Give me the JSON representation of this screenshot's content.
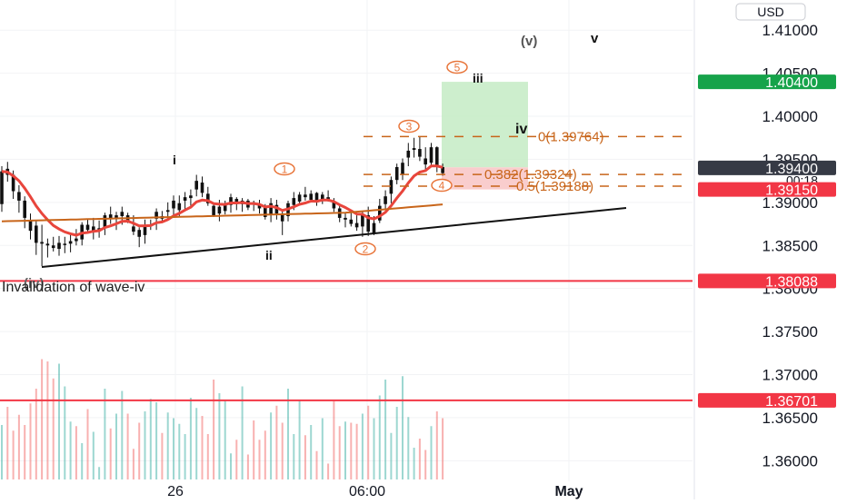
{
  "currency_button": "USD",
  "colors": {
    "candle": "#111111",
    "ema_fast": "#e8453c",
    "ema_slow": "#c8651a",
    "trendline": "#111111",
    "fib": "#c8651a",
    "wave_circle": "#e8753a",
    "level_red": "#f23645",
    "current_price_bg": "#363a45",
    "target_green": "#16a34a",
    "volume_up": "#26a69a",
    "volume_down": "#ef5350",
    "profit_zone": "#c8ecc8",
    "loss_zone": "#f8c8c8"
  },
  "chart_data": {
    "type": "candlestick",
    "symbol_currency": "USD",
    "ylim": [
      1.3555,
      1.4135
    ],
    "y_ticks": [
      "1.41000",
      "1.40500",
      "1.40000",
      "1.39500",
      "1.39000",
      "1.38500",
      "1.38000",
      "1.37500",
      "1.37000",
      "1.36500",
      "1.36000"
    ],
    "x_ticks": [
      "26",
      "06:00",
      "May"
    ],
    "price_labels": [
      {
        "text": "1.40400",
        "value": 1.404,
        "style": "green"
      },
      {
        "text": "1.39407",
        "value": 1.39407,
        "style": "plain",
        "sub": "00:18"
      },
      {
        "text": "1.39400",
        "value": 1.394,
        "style": "dark"
      },
      {
        "text": "1.39150",
        "value": 1.3915,
        "style": "red"
      },
      {
        "text": "1.38088",
        "value": 1.38088,
        "style": "red"
      },
      {
        "text": "1.36701",
        "value": 1.36701,
        "style": "red"
      }
    ],
    "horizontal_lines": [
      {
        "value": 1.38088,
        "color": "#f23645"
      },
      {
        "value": 1.36701,
        "color": "#f23645"
      }
    ],
    "annotations": {
      "invalidation": "Invalidation of wave-iv",
      "wave_labels": [
        "i",
        "ii",
        "iii",
        "iv",
        "(v)",
        "v",
        "(iv)"
      ],
      "circled_waves": [
        "1",
        "2",
        "3",
        "4",
        "5"
      ],
      "fib_levels": [
        "0(1.39764)",
        "0.382(1.39324)",
        "0.5(1.39188)"
      ]
    },
    "candles": [
      [
        1.3898,
        1.3942,
        1.3889,
        1.3936
      ],
      [
        1.3939,
        1.3947,
        1.3924,
        1.3932
      ],
      [
        1.3932,
        1.3937,
        1.3904,
        1.3913
      ],
      [
        1.3912,
        1.392,
        1.3888,
        1.3902
      ],
      [
        1.3902,
        1.3907,
        1.387,
        1.3882
      ],
      [
        1.3879,
        1.3887,
        1.3857,
        1.3867
      ],
      [
        1.3873,
        1.3879,
        1.3839,
        1.3853
      ],
      [
        1.3854,
        1.3874,
        1.3826,
        1.3852
      ],
      [
        1.3852,
        1.3858,
        1.3836,
        1.385
      ],
      [
        1.385,
        1.386,
        1.3843,
        1.3847
      ],
      [
        1.3846,
        1.3861,
        1.3838,
        1.3853
      ],
      [
        1.3851,
        1.386,
        1.3841,
        1.3852
      ],
      [
        1.3852,
        1.3863,
        1.3842,
        1.3855
      ],
      [
        1.3858,
        1.3869,
        1.385,
        1.3855
      ],
      [
        1.3857,
        1.3877,
        1.385,
        1.3874
      ],
      [
        1.3874,
        1.388,
        1.3866,
        1.3868
      ],
      [
        1.3867,
        1.3882,
        1.3857,
        1.3872
      ],
      [
        1.3869,
        1.3879,
        1.3859,
        1.387
      ],
      [
        1.387,
        1.3888,
        1.3862,
        1.3885
      ],
      [
        1.3886,
        1.3895,
        1.3875,
        1.3881
      ],
      [
        1.3881,
        1.3889,
        1.3868,
        1.3885
      ],
      [
        1.3884,
        1.3895,
        1.3874,
        1.3889
      ],
      [
        1.3885,
        1.3888,
        1.3876,
        1.3879
      ],
      [
        1.3872,
        1.3885,
        1.3862,
        1.3866
      ],
      [
        1.3868,
        1.3871,
        1.3848,
        1.386
      ],
      [
        1.3862,
        1.388,
        1.3852,
        1.3874
      ],
      [
        1.3874,
        1.388,
        1.3868,
        1.3874
      ],
      [
        1.3881,
        1.3893,
        1.3868,
        1.3889
      ],
      [
        1.3884,
        1.389,
        1.3877,
        1.3881
      ],
      [
        1.3889,
        1.39,
        1.3879,
        1.3891
      ],
      [
        1.3893,
        1.3908,
        1.3884,
        1.3902
      ],
      [
        1.3891,
        1.3908,
        1.3883,
        1.3899
      ],
      [
        1.3902,
        1.3912,
        1.3891,
        1.3906
      ],
      [
        1.3905,
        1.3915,
        1.3896,
        1.3908
      ],
      [
        1.3915,
        1.3932,
        1.3907,
        1.3925
      ],
      [
        1.3923,
        1.393,
        1.3906,
        1.3911
      ],
      [
        1.391,
        1.3918,
        1.3896,
        1.3899
      ],
      [
        1.3896,
        1.3898,
        1.3883,
        1.3885
      ],
      [
        1.3887,
        1.3903,
        1.3878,
        1.3895
      ],
      [
        1.389,
        1.3902,
        1.3886,
        1.3897
      ],
      [
        1.3897,
        1.391,
        1.3888,
        1.3906
      ],
      [
        1.3904,
        1.3906,
        1.3891,
        1.3899
      ],
      [
        1.3898,
        1.3905,
        1.3889,
        1.3902
      ],
      [
        1.3902,
        1.3904,
        1.3891,
        1.3894
      ],
      [
        1.39,
        1.3902,
        1.389,
        1.3899
      ],
      [
        1.3897,
        1.3903,
        1.3887,
        1.3893
      ],
      [
        1.3896,
        1.3898,
        1.388,
        1.3883
      ],
      [
        1.3886,
        1.3905,
        1.3877,
        1.3899
      ],
      [
        1.3897,
        1.3903,
        1.388,
        1.3887
      ],
      [
        1.3887,
        1.389,
        1.3862,
        1.3878
      ],
      [
        1.3884,
        1.3902,
        1.3878,
        1.3899
      ],
      [
        1.3897,
        1.3912,
        1.3891,
        1.3905
      ],
      [
        1.3901,
        1.3912,
        1.3899,
        1.3909
      ],
      [
        1.3909,
        1.3918,
        1.3902,
        1.3906
      ],
      [
        1.3903,
        1.3914,
        1.39,
        1.391
      ],
      [
        1.3911,
        1.3912,
        1.3896,
        1.39
      ],
      [
        1.3903,
        1.3912,
        1.3898,
        1.3909
      ],
      [
        1.3906,
        1.3914,
        1.3901,
        1.3903
      ],
      [
        1.3901,
        1.3905,
        1.3889,
        1.3893
      ],
      [
        1.3893,
        1.3897,
        1.3877,
        1.3882
      ],
      [
        1.388,
        1.3888,
        1.3871,
        1.3882
      ],
      [
        1.388,
        1.3891,
        1.3872,
        1.3875
      ],
      [
        1.3876,
        1.3885,
        1.3867,
        1.3871
      ],
      [
        1.3872,
        1.3889,
        1.386,
        1.3885
      ],
      [
        1.3885,
        1.3895,
        1.3861,
        1.3866
      ],
      [
        1.3864,
        1.3884,
        1.3862,
        1.3876
      ],
      [
        1.3879,
        1.3904,
        1.3876,
        1.3896
      ],
      [
        1.3898,
        1.3914,
        1.3892,
        1.3907
      ],
      [
        1.391,
        1.393,
        1.3899,
        1.3926
      ],
      [
        1.3926,
        1.3945,
        1.3921,
        1.3941
      ],
      [
        1.3933,
        1.3951,
        1.3926,
        1.3946
      ],
      [
        1.3952,
        1.3969,
        1.3942,
        1.396
      ],
      [
        1.3961,
        1.3975,
        1.3952,
        1.3963
      ],
      [
        1.3962,
        1.3976,
        1.3948,
        1.3953
      ],
      [
        1.3951,
        1.3964,
        1.3936,
        1.3944
      ],
      [
        1.3946,
        1.3969,
        1.3943,
        1.3964
      ],
      [
        1.3964,
        1.3965,
        1.3935,
        1.3942
      ],
      [
        1.3941,
        1.3945,
        1.3931,
        1.3934
      ]
    ],
    "volumes": [
      48,
      64,
      43,
      57,
      48,
      67,
      80,
      106,
      104,
      89,
      102,
      82,
      51,
      47,
      32,
      62,
      42,
      11,
      80,
      45,
      58,
      78,
      58,
      27,
      50,
      60,
      71,
      68,
      41,
      59,
      54,
      49,
      40,
      72,
      63,
      56,
      40,
      88,
      76,
      70,
      23,
      35,
      82,
      22,
      52,
      35,
      43,
      59,
      65,
      50,
      80,
      40,
      70,
      39,
      48,
      25,
      54,
      14,
      69,
      47,
      51,
      50,
      49,
      58,
      65,
      54,
      74,
      88,
      41,
      64,
      91,
      55,
      28,
      36,
      26,
      47,
      60,
      54
    ]
  }
}
